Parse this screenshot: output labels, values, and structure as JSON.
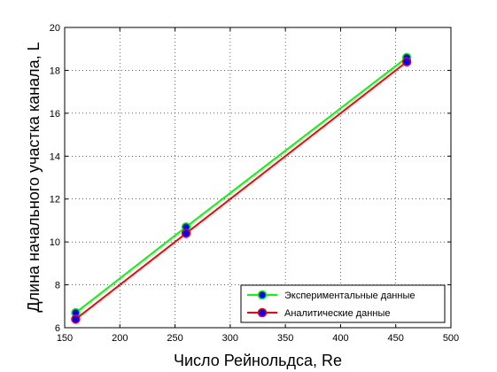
{
  "chart_data": {
    "type": "line",
    "title": "",
    "xlabel": "Число Рейнольдса, Re",
    "ylabel": "Длина начального участка канала, L",
    "xlim": [
      150,
      500
    ],
    "ylim": [
      6,
      20
    ],
    "xticks": [
      150,
      200,
      250,
      300,
      350,
      400,
      450,
      500
    ],
    "yticks": [
      6,
      8,
      10,
      12,
      14,
      16,
      18,
      20
    ],
    "grid": true,
    "legend_position": "bottom-right",
    "series": [
      {
        "name": "Экспериментальные данные",
        "color": "#00ff00",
        "marker_face": "#0000ff",
        "marker_edge": "#00ff00",
        "x": [
          160,
          260,
          460
        ],
        "y": [
          6.7,
          10.7,
          18.6
        ]
      },
      {
        "name": "Аналитические данные",
        "color": "#ff0000",
        "marker_face": "#0000ff",
        "marker_edge": "#ff0000",
        "x": [
          160,
          260,
          460
        ],
        "y": [
          6.4,
          10.4,
          18.4
        ]
      }
    ]
  }
}
